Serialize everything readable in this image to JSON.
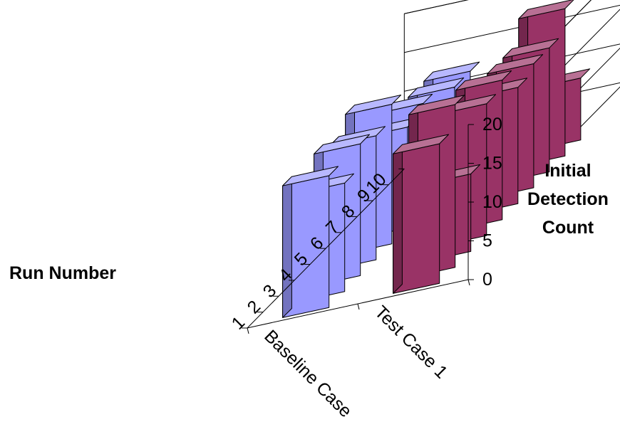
{
  "chart_data": {
    "type": "bar",
    "subtype": "3d-column",
    "title": "",
    "categories": [
      "1",
      "2",
      "3",
      "4",
      "5",
      "6",
      "7",
      "8",
      "9",
      "10"
    ],
    "series": [
      {
        "name": "Baseline Case",
        "color": "#9999ff",
        "values": [
          17,
          14,
          17,
          16,
          18,
          13,
          14,
          11,
          12,
          12
        ]
      },
      {
        "name": "Test Case 1",
        "color": "#993366",
        "values": [
          18,
          21,
          10,
          17,
          18,
          15,
          16,
          16,
          19,
          8
        ]
      }
    ],
    "x_axis_label": "Run Number",
    "z_axis_label": "Initial Detection Count",
    "z_axis_label_lines": [
      "Initial",
      "Detection",
      "Count"
    ],
    "zlim": [
      0,
      20
    ],
    "z_ticks": [
      "0",
      "5",
      "10",
      "15",
      "20"
    ],
    "grid": true,
    "legend": "none"
  }
}
